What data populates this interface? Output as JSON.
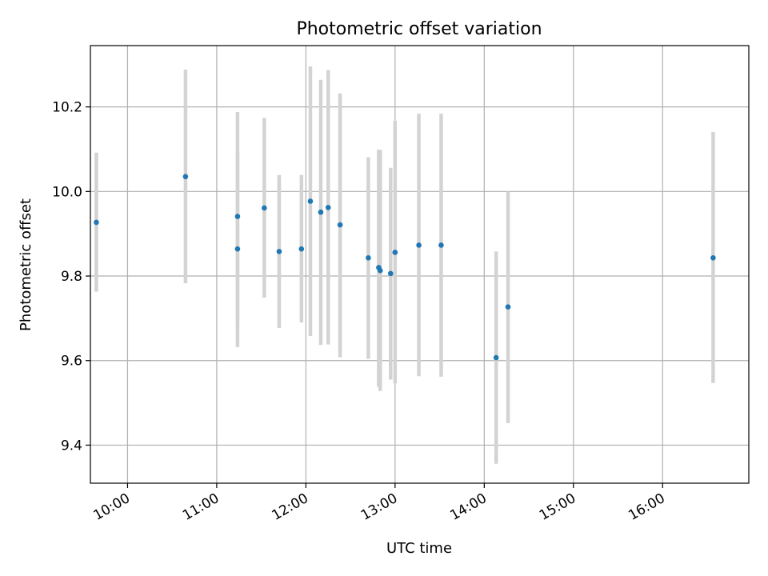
{
  "chart_data": {
    "type": "scatter",
    "title": "Photometric offset variation",
    "xlabel": "UTC time",
    "ylabel": "Photometric offset",
    "xlim": [
      "09:35",
      "16:58"
    ],
    "ylim": [
      9.31,
      10.345
    ],
    "x_ticks": [
      "10:00",
      "11:00",
      "12:00",
      "13:00",
      "14:00",
      "15:00",
      "16:00"
    ],
    "y_ticks": [
      "9.4",
      "9.6",
      "9.8",
      "10.0",
      "10.2"
    ],
    "grid": true,
    "marker_color": "#1f77b4",
    "errorbar_color": "#d3d3d3",
    "points": [
      {
        "x": "09:39",
        "y": 9.927,
        "ylow": 9.763,
        "yhigh": 10.092
      },
      {
        "x": "10:39",
        "y": 10.035,
        "ylow": 9.783,
        "yhigh": 10.288
      },
      {
        "x": "11:14",
        "y": 9.941,
        "ylow": 9.692,
        "yhigh": 10.188
      },
      {
        "x": "11:14",
        "y": 9.864,
        "ylow": 9.632,
        "yhigh": 10.095
      },
      {
        "x": "11:32",
        "y": 9.961,
        "ylow": 9.749,
        "yhigh": 10.174
      },
      {
        "x": "11:42",
        "y": 9.858,
        "ylow": 9.677,
        "yhigh": 10.039
      },
      {
        "x": "11:57",
        "y": 9.864,
        "ylow": 9.69,
        "yhigh": 10.039
      },
      {
        "x": "12:03",
        "y": 9.977,
        "ylow": 9.658,
        "yhigh": 10.296
      },
      {
        "x": "12:10",
        "y": 9.951,
        "ylow": 9.637,
        "yhigh": 10.264
      },
      {
        "x": "12:15",
        "y": 9.962,
        "ylow": 9.638,
        "yhigh": 10.287
      },
      {
        "x": "12:23",
        "y": 9.921,
        "ylow": 9.608,
        "yhigh": 10.232
      },
      {
        "x": "12:42",
        "y": 9.843,
        "ylow": 9.604,
        "yhigh": 10.081
      },
      {
        "x": "12:49",
        "y": 9.82,
        "ylow": 9.538,
        "yhigh": 10.099
      },
      {
        "x": "12:50",
        "y": 9.813,
        "ylow": 9.528,
        "yhigh": 10.098
      },
      {
        "x": "12:57",
        "y": 9.806,
        "ylow": 9.555,
        "yhigh": 10.056
      },
      {
        "x": "13:00",
        "y": 9.856,
        "ylow": 9.546,
        "yhigh": 10.167
      },
      {
        "x": "13:16",
        "y": 9.873,
        "ylow": 9.563,
        "yhigh": 10.184
      },
      {
        "x": "13:31",
        "y": 9.873,
        "ylow": 9.562,
        "yhigh": 10.184
      },
      {
        "x": "14:08",
        "y": 9.607,
        "ylow": 9.356,
        "yhigh": 9.858
      },
      {
        "x": "14:16",
        "y": 9.727,
        "ylow": 9.452,
        "yhigh": 10.0
      },
      {
        "x": "16:34",
        "y": 9.843,
        "ylow": 9.547,
        "yhigh": 10.141
      }
    ]
  }
}
